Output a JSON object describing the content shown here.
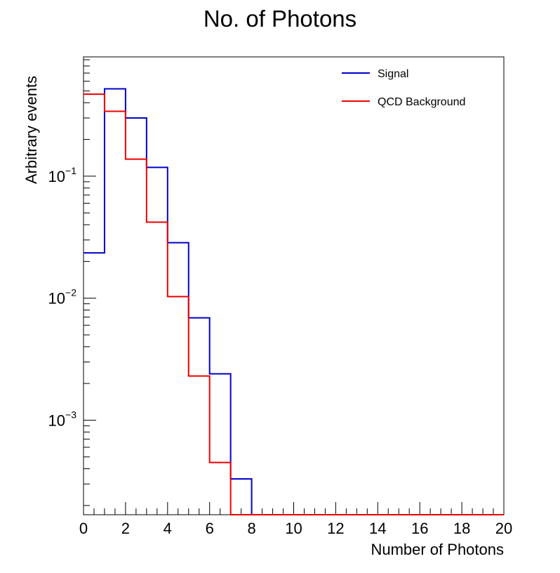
{
  "chart_data": {
    "type": "histogram",
    "title": "No. of Photons",
    "xlabel": "Number of Photons",
    "ylabel": "Arbitrary events",
    "xlim": [
      0,
      20
    ],
    "ylim": [
      0.000168,
      0.95
    ],
    "yscale": "log",
    "grid": false,
    "legend_position": "top-right",
    "x_ticks": [
      "0",
      "2",
      "4",
      "6",
      "8",
      "10",
      "12",
      "14",
      "16",
      "18",
      "20"
    ],
    "y_ticks": [
      {
        "base": "10",
        "exp": "−1",
        "value": 0.1
      },
      {
        "base": "10",
        "exp": "−2",
        "value": 0.01
      },
      {
        "base": "10",
        "exp": "−3",
        "value": 0.001
      }
    ],
    "bin_edges": [
      0,
      1,
      2,
      3,
      4,
      5,
      6,
      7,
      8,
      9,
      10,
      11,
      12,
      13,
      14,
      15,
      16,
      17,
      18,
      19,
      20
    ],
    "series": [
      {
        "name": "Signal",
        "color": "#0000cc",
        "values": [
          0.0235,
          0.52,
          0.3,
          0.118,
          0.0285,
          0.0069,
          0.0024,
          0.00033,
          0,
          0,
          0,
          0,
          0,
          0,
          0,
          0,
          0,
          0,
          0,
          0
        ]
      },
      {
        "name": "QCD Background",
        "color": "#ee0000",
        "values": [
          0.47,
          0.34,
          0.138,
          0.042,
          0.0103,
          0.0023,
          0.00045,
          0,
          0,
          0,
          0,
          0,
          0,
          0,
          0,
          0,
          0,
          0,
          0,
          0
        ]
      }
    ]
  }
}
